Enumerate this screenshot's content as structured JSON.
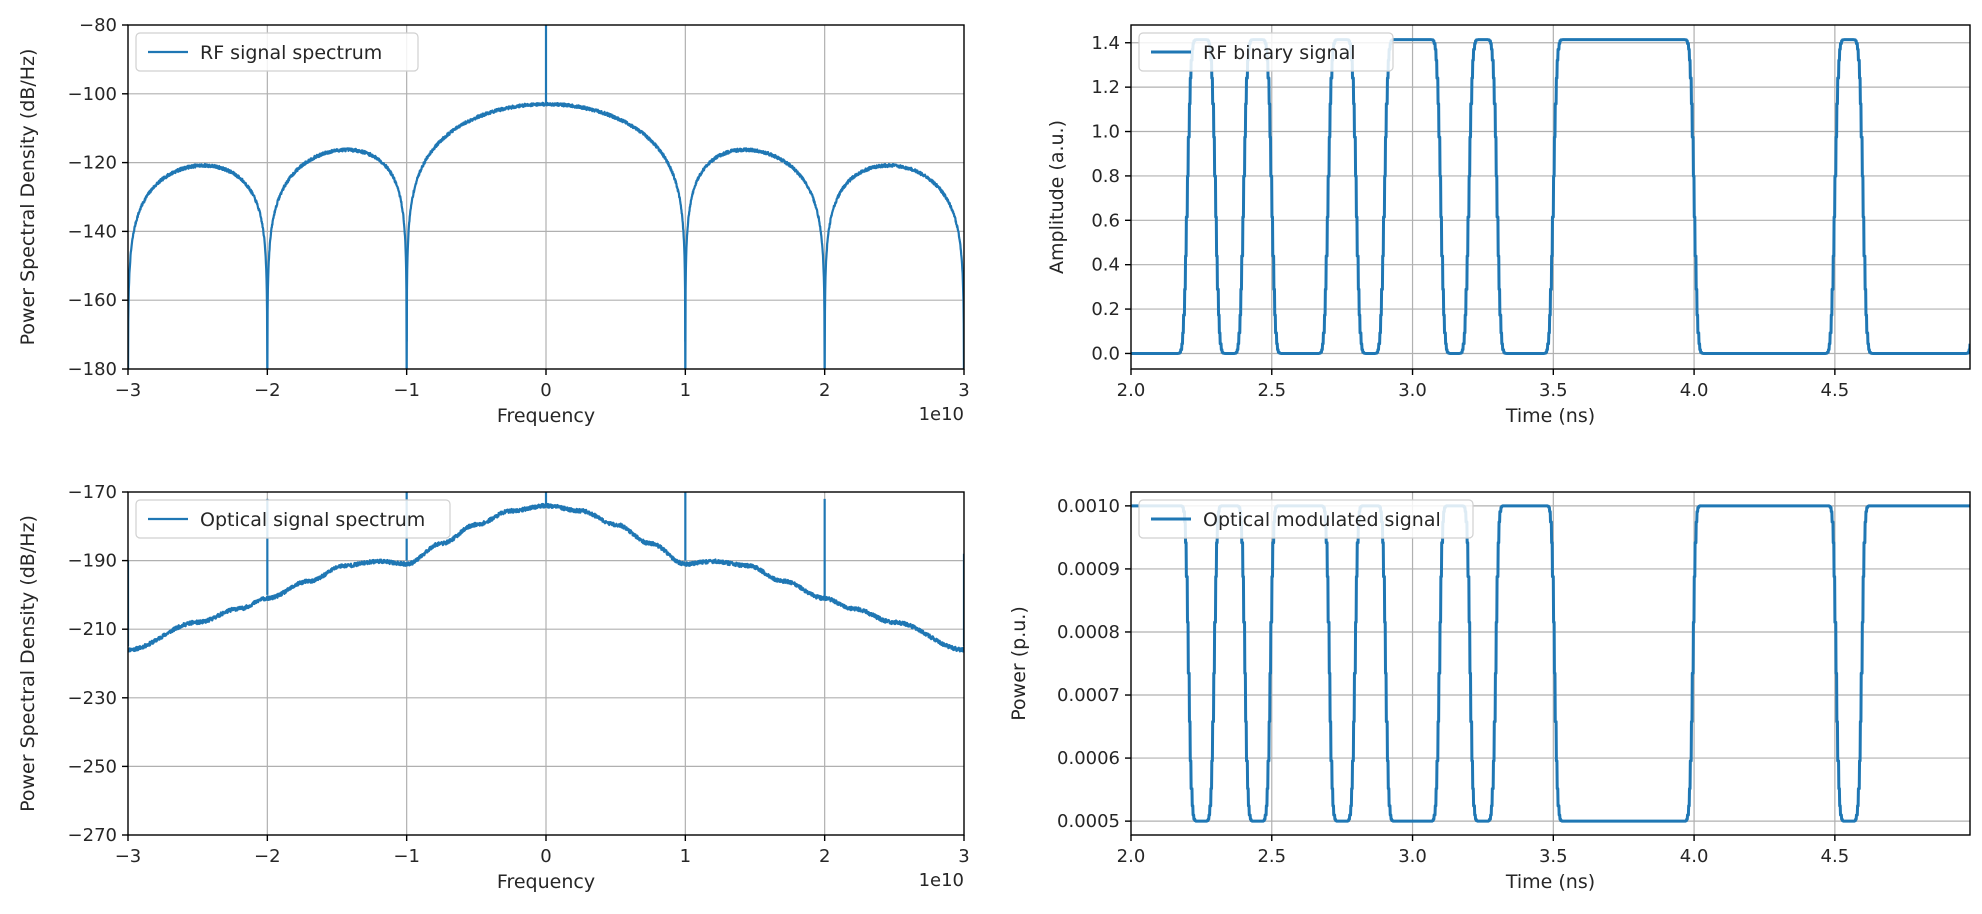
{
  "colors": {
    "series": "#1f77b4",
    "grid": "#b0b0b0",
    "axis": "#000000"
  },
  "chart_data": [
    {
      "type": "line",
      "id": "rf-spectrum",
      "legend": "RF signal spectrum",
      "legend_position": "top-left",
      "xlabel": "Frequency",
      "ylabel": "Power Spectral Density (dB/Hz)",
      "x_offset_label": "1e10",
      "xlim": [
        -30000000000.0,
        30000000000.0
      ],
      "ylim": [
        -180,
        -80
      ],
      "xticks": [
        -30000000000.0,
        -20000000000.0,
        -10000000000.0,
        0,
        10000000000.0,
        20000000000.0,
        30000000000.0
      ],
      "xtick_labels": [
        "−3",
        "−2",
        "−1",
        "0",
        "1",
        "2",
        "3"
      ],
      "yticks": [
        -180,
        -160,
        -140,
        -120,
        -100,
        -80
      ],
      "ytick_labels": [
        "−180",
        "−160",
        "−140",
        "−120",
        "−100",
        "−80"
      ],
      "grid": true,
      "description": "sinc-squared envelope: main lobe peak -103 dB/Hz at 0 Hz, side lobes -125 dB/Hz at ±1.3e10 and -146 dB/Hz at ±2.3e10, nulls at every 1e10 multiple",
      "envelope": {
        "main_peak": -103,
        "lobe_width": 10000000000.0,
        "floor": -180
      },
      "spikes": [
        {
          "x": 0,
          "from": -103,
          "to": -80
        },
        {
          "x": -10000000000.0,
          "from": -150,
          "to": -172
        },
        {
          "x": 10000000000.0,
          "from": -150,
          "to": -172
        }
      ]
    },
    {
      "type": "line",
      "id": "rf-binary",
      "legend": "RF binary signal",
      "legend_position": "top-left",
      "xlabel": "Time (ns)",
      "ylabel": "Amplitude (a.u.)",
      "xlim": [
        2.0,
        4.98
      ],
      "ylim": [
        -0.07,
        1.48
      ],
      "xticks": [
        2.0,
        2.5,
        3.0,
        3.5,
        4.0,
        4.5
      ],
      "xtick_labels": [
        "2.0",
        "2.5",
        "3.0",
        "3.5",
        "4.0",
        "4.5"
      ],
      "yticks": [
        0.0,
        0.2,
        0.4,
        0.6,
        0.8,
        1.0,
        1.2,
        1.4
      ],
      "ytick_labels": [
        "0.0",
        "0.2",
        "0.4",
        "0.6",
        "0.8",
        "1.0",
        "1.2",
        "1.4"
      ],
      "grid": true,
      "bit_period_ns": 0.1,
      "start_ns": 2.0,
      "bits": [
        0,
        0,
        1,
        0,
        1,
        0,
        0,
        1,
        0,
        1,
        1,
        0,
        1,
        0,
        0,
        1,
        1,
        1,
        1,
        1,
        0,
        0,
        0,
        0,
        0,
        1,
        0,
        0,
        0,
        0,
        1,
        0,
        0,
        0,
        0,
        1,
        0,
        0,
        0,
        0
      ],
      "low": 0.0,
      "high": 1.414
    },
    {
      "type": "line",
      "id": "optical-spectrum",
      "legend": "Optical signal spectrum",
      "legend_position": "top-left",
      "xlabel": "Frequency",
      "ylabel": "Power Spectral Density (dB/Hz)",
      "x_offset_label": "1e10",
      "xlim": [
        -30000000000.0,
        30000000000.0
      ],
      "ylim": [
        -270,
        -170
      ],
      "xticks": [
        -30000000000.0,
        -20000000000.0,
        -10000000000.0,
        0,
        10000000000.0,
        20000000000.0,
        30000000000.0
      ],
      "xtick_labels": [
        "−3",
        "−2",
        "−1",
        "0",
        "1",
        "2",
        "3"
      ],
      "yticks": [
        -270,
        -250,
        -230,
        -210,
        -190,
        -170
      ],
      "ytick_labels": [
        "−270",
        "−250",
        "−230",
        "−210",
        "−190",
        "−170"
      ],
      "grid": true,
      "description": "broad envelope peaking at -174 dB/Hz at 0 Hz, shoulders near -190 dB/Hz at ±1.2e10, falling to about -216 dB/Hz at ±3e10, with carrier spikes",
      "spikes": [
        {
          "x": 0,
          "from": -174,
          "to": -170
        },
        {
          "x": -10000000000.0,
          "from": -190,
          "to": -170
        },
        {
          "x": 10000000000.0,
          "from": -190,
          "to": -170
        },
        {
          "x": -20000000000.0,
          "from": -200,
          "to": -172
        },
        {
          "x": 20000000000.0,
          "from": -201,
          "to": -172
        },
        {
          "x": -30000000000.0,
          "from": -215,
          "to": -190
        },
        {
          "x": 30000000000.0,
          "from": -215,
          "to": -188
        }
      ]
    },
    {
      "type": "line",
      "id": "optical-modulated",
      "legend": "Optical modulated signal",
      "legend_position": "top-left",
      "xlabel": "Time (ns)",
      "ylabel": "Power (p.u.)",
      "xlim": [
        2.0,
        4.98
      ],
      "ylim": [
        0.000478,
        0.001022
      ],
      "xticks": [
        2.0,
        2.5,
        3.0,
        3.5,
        4.0,
        4.5
      ],
      "xtick_labels": [
        "2.0",
        "2.5",
        "3.0",
        "3.5",
        "4.0",
        "4.5"
      ],
      "yticks": [
        0.0005,
        0.0006,
        0.0007,
        0.0008,
        0.0009,
        0.001
      ],
      "ytick_labels": [
        "0.0005",
        "0.0006",
        "0.0007",
        "0.0008",
        "0.0009",
        "0.0010"
      ],
      "grid": true,
      "description": "Mach-Zehnder output of the RF binary signal: P = 0.0005 + 0.0005*sin(pi/2*(1 + v/1.414)), low level 0.0005, plateau 0.0009, overshoot peaks 0.0010",
      "min_power": 0.0005,
      "max_power": 0.001
    }
  ]
}
